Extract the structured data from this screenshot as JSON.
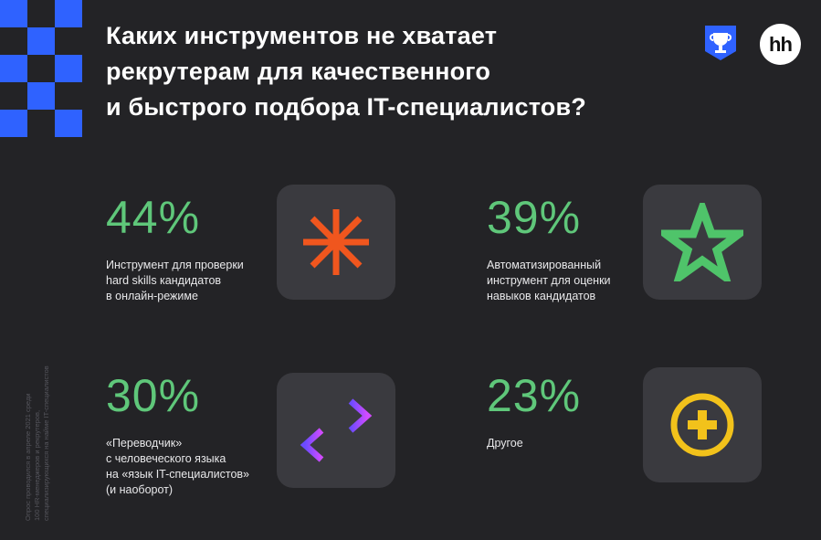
{
  "title": "Каких инструментов не хватает\nрекрутерам для качественного\nи быстрого подбора IT-специалистов?",
  "logo": {
    "text": "hh",
    "badge_icon": "trophy-badge-icon"
  },
  "colors": {
    "background": "#232326",
    "accent_green": "#5fc77a",
    "checker_blue": "#2f62ff",
    "tile": "#3a3a3f"
  },
  "chart_data": {
    "type": "table",
    "items": [
      {
        "value": "44%",
        "label": "Инструмент для проверки\nhard skills кандидатов\nв онлайн-режиме",
        "icon": "asterisk-icon",
        "icon_color": "#f0561e"
      },
      {
        "value": "39%",
        "label": "Автоматизированный\nинструмент для оценки\nнавыков кандидатов",
        "icon": "star-icon",
        "icon_color": "#4fc46a"
      },
      {
        "value": "30%",
        "label": "«Переводчик»\nс человеческого языка\nна «язык IT-специалистов»\n(и наоборот)",
        "icon": "swap-arrows-icon",
        "icon_color": "#b44bff"
      },
      {
        "value": "23%",
        "label": "Другое",
        "icon": "plus-circle-icon",
        "icon_color": "#f2c21b"
      }
    ]
  },
  "footnote": "Опрос проводился в апреле 2021 среди\n100 HR-менеджеров и рекрутеров,\nспециализирующихся на найме IT-специалистов"
}
